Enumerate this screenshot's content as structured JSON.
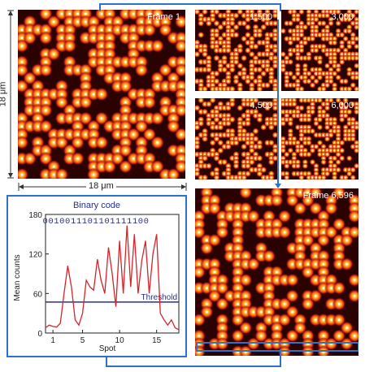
{
  "frames": {
    "main": {
      "label": "Frame 1",
      "seed": 11,
      "density": 0.52
    },
    "f1500": {
      "label": "1,500",
      "seed": 23,
      "density": 0.5
    },
    "f3000": {
      "label": "3,000",
      "seed": 37,
      "density": 0.5
    },
    "f4500": {
      "label": "4,500",
      "seed": 41,
      "density": 0.5
    },
    "f6000": {
      "label": "6,000",
      "seed": 53,
      "density": 0.5
    },
    "f6596": {
      "label": "Frame 6,596",
      "seed": 67,
      "density": 0.45
    }
  },
  "scale": {
    "vertical": "18 μm",
    "horizontal": "18 μm"
  },
  "colors": {
    "accent": "#2b73c8",
    "curve": "#d8232a",
    "threshold": "#2a2f8e",
    "code": "#2a2f8e"
  },
  "chart_data": {
    "type": "line",
    "title": "Binary code",
    "code_string": "0010011101101111100",
    "xlabel": "Spot",
    "ylabel": "Mean counts",
    "xticks": [
      "1",
      "5",
      "10",
      "15"
    ],
    "yticks": [
      "0",
      "60",
      "120",
      "180"
    ],
    "xlim": [
      0,
      18
    ],
    "ylim": [
      0,
      180
    ],
    "threshold": {
      "label": "Threshold",
      "value": 47
    },
    "x": [
      0,
      0.5,
      1,
      1.5,
      2,
      2.5,
      3,
      3.5,
      4,
      4.5,
      5,
      5.5,
      6,
      6.5,
      7,
      7.5,
      8,
      8.5,
      9,
      9.5,
      10,
      10.5,
      11,
      11.5,
      12,
      12.5,
      13,
      13.5,
      14,
      14.5,
      15,
      15.5,
      16,
      16.5,
      17,
      17.5,
      18
    ],
    "values": [
      8,
      12,
      10,
      9,
      15,
      60,
      102,
      70,
      20,
      12,
      30,
      80,
      70,
      65,
      112,
      80,
      60,
      130,
      90,
      40,
      140,
      60,
      163,
      70,
      150,
      60,
      110,
      140,
      60,
      120,
      150,
      30,
      20,
      12,
      20,
      8,
      5
    ]
  }
}
